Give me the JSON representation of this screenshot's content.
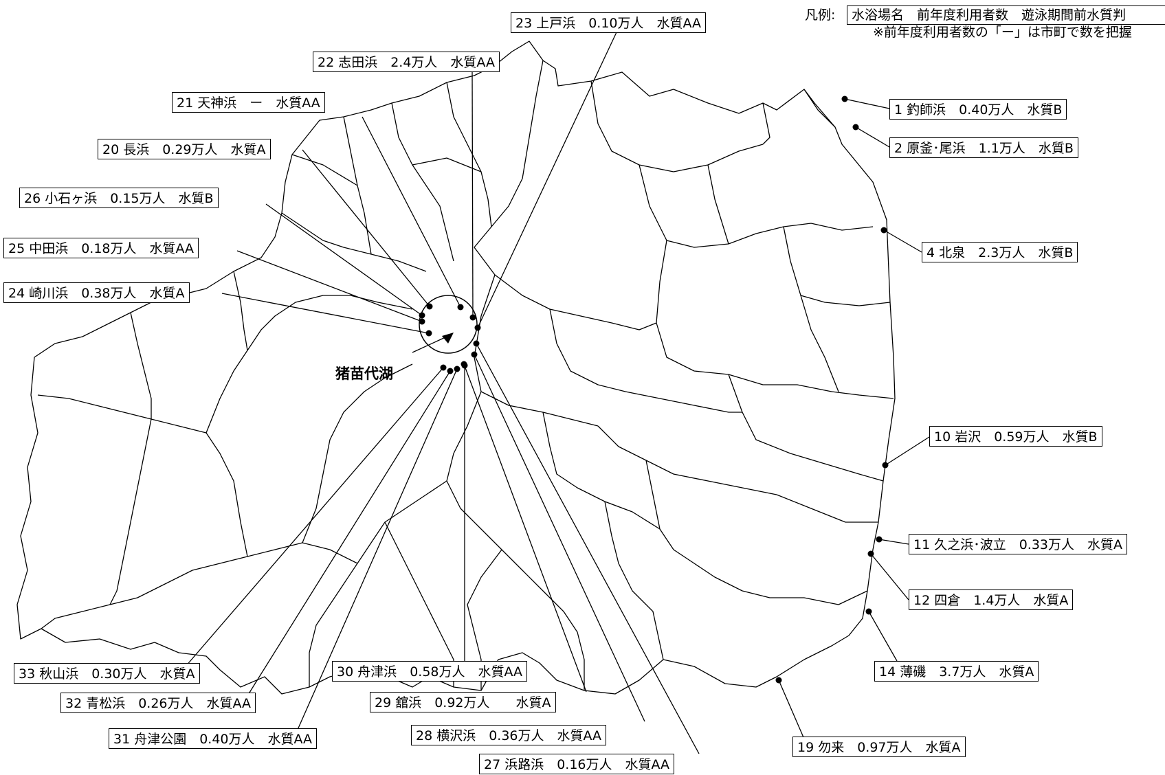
{
  "legend": {
    "prefix": "凡例:",
    "format": "水浴場名　前年度利用者数　遊泳期間前水質判",
    "note": "※前年度利用者数の「ー」は市町で数を把握"
  },
  "lake_label": "猪苗代湖",
  "beaches": [
    {
      "id": "b1",
      "text": "1 釣師浜　0.40万人　水質B"
    },
    {
      "id": "b2",
      "text": "2 原釜･尾浜　1.1万人　水質B"
    },
    {
      "id": "b4",
      "text": "4 北泉　2.3万人　水質B"
    },
    {
      "id": "b10",
      "text": "10 岩沢　0.59万人　水質B"
    },
    {
      "id": "b11",
      "text": "11 久之浜･波立　0.33万人　水質A"
    },
    {
      "id": "b12",
      "text": "12 四倉　1.4万人　水質A"
    },
    {
      "id": "b14",
      "text": "14 薄磯　3.7万人　水質A"
    },
    {
      "id": "b19",
      "text": "19 勿来　0.97万人　水質A"
    },
    {
      "id": "b20",
      "text": "20 長浜　0.29万人　水質A"
    },
    {
      "id": "b21",
      "text": "21 天神浜　ー　水質AA"
    },
    {
      "id": "b22",
      "text": "22 志田浜　2.4万人　水質AA"
    },
    {
      "id": "b23",
      "text": "23 上戸浜　0.10万人　水質AA"
    },
    {
      "id": "b24",
      "text": "24 崎川浜　0.38万人　水質A"
    },
    {
      "id": "b25",
      "text": "25 中田浜　0.18万人　水質AA"
    },
    {
      "id": "b26",
      "text": "26 小石ヶ浜　0.15万人　水質B"
    },
    {
      "id": "b27",
      "text": "27 浜路浜　0.16万人　水質AA"
    },
    {
      "id": "b28",
      "text": "28 横沢浜　0.36万人　水質AA"
    },
    {
      "id": "b29",
      "text": "29 舘浜　0.92万人　　水質A"
    },
    {
      "id": "b30",
      "text": "30 舟津浜　0.58万人　水質AA"
    },
    {
      "id": "b31",
      "text": "31 舟津公園　0.40万人　水質AA"
    },
    {
      "id": "b32",
      "text": "32 青松浜　0.26万人　水質AA"
    },
    {
      "id": "b33",
      "text": "33 秋山浜　0.30万人　水質A"
    }
  ]
}
